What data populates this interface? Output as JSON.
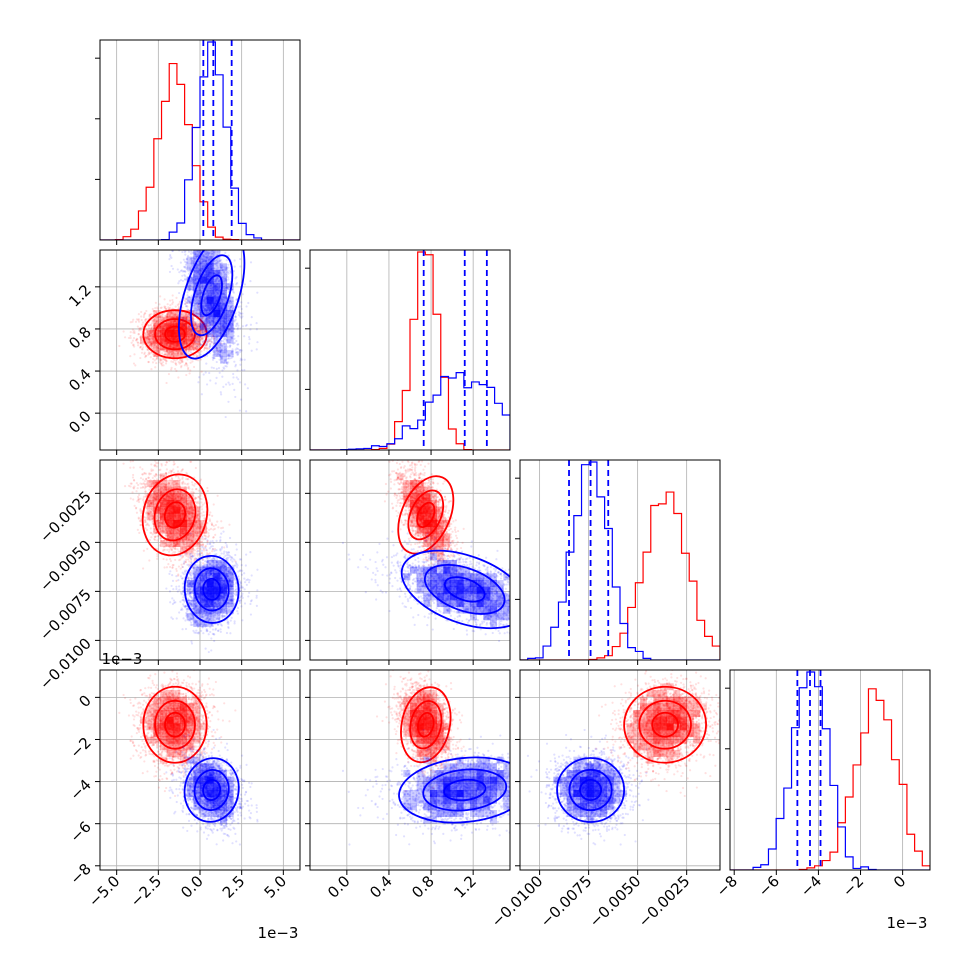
{
  "chart_data": {
    "type": "corner",
    "title": "",
    "parameters": [
      {
        "ticks": [
          -5.0,
          -2.5,
          0.0,
          2.5,
          5.0
        ],
        "tick_labels": [
          "−5.0",
          "−2.5",
          "0.0",
          "2.5",
          "5.0"
        ],
        "range": [
          -6,
          6
        ],
        "offset_label": "1e−3"
      },
      {
        "ticks": [
          0.0,
          0.4,
          0.8,
          1.2
        ],
        "tick_labels": [
          "0.0",
          "0.4",
          "0.8",
          "1.2"
        ],
        "range": [
          -0.35,
          1.55
        ],
        "offset_label": ""
      },
      {
        "ticks": [
          -0.01,
          -0.0075,
          -0.005,
          -0.0025
        ],
        "tick_labels": [
          "−0.0100",
          "−0.0075",
          "−0.0050",
          "−0.0025"
        ],
        "range": [
          -0.011,
          -0.0008
        ],
        "offset_label": ""
      },
      {
        "ticks": [
          -8,
          -6,
          -4,
          -2,
          0
        ],
        "tick_labels": [
          "−8",
          "−6",
          "−4",
          "−2",
          "0"
        ],
        "range": [
          -8.2,
          1.3
        ],
        "offset_label": "1e−3"
      }
    ],
    "grid": true,
    "series": [
      {
        "color": "#ff0000",
        "means": [
          -1.5,
          0.75,
          -0.0036,
          -1.3
        ],
        "sds": [
          1.0,
          0.12,
          0.0011,
          0.95
        ]
      },
      {
        "color": "#0000ff",
        "means": [
          0.7,
          1.12,
          -0.0074,
          -4.4
        ],
        "sds": [
          0.85,
          0.33,
          0.0009,
          0.8
        ],
        "quantile_lines": [
          [
            0.2,
            0.8,
            1.9
          ],
          [
            0.73,
            1.12,
            1.33
          ],
          [
            -0.0085,
            -0.0074,
            -0.0065
          ],
          [
            -5.0,
            -4.4,
            -3.9
          ]
        ]
      }
    ]
  }
}
